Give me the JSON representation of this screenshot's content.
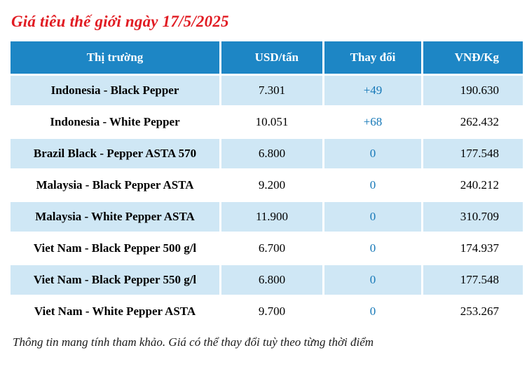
{
  "title": "Giá tiêu thế giới ngày 17/5/2025",
  "disclaimer": "Thông tin mang tính tham khảo. Giá có thể thay đổi tuỳ theo từng thời điểm",
  "colors": {
    "header_bg": "#1d86c5",
    "row_alt_bg": "#cfe7f5",
    "change_text": "#1779b8",
    "title_text": "#e11b22"
  },
  "chart_data": {
    "type": "table",
    "title": "Giá tiêu thế giới ngày 17/5/2025",
    "columns": [
      "Thị trường",
      "USD/tấn",
      "Thay đổi",
      "VNĐ/Kg"
    ],
    "rows": [
      {
        "market": "Indonesia - Black Pepper",
        "usd": "7.301",
        "change": "+49",
        "vnd": "190.630"
      },
      {
        "market": "Indonesia - White Pepper",
        "usd": "10.051",
        "change": "+68",
        "vnd": "262.432"
      },
      {
        "market": "Brazil Black - Pepper ASTA 570",
        "usd": "6.800",
        "change": "0",
        "vnd": "177.548"
      },
      {
        "market": "Malaysia - Black Pepper ASTA",
        "usd": "9.200",
        "change": "0",
        "vnd": "240.212"
      },
      {
        "market": "Malaysia - White Pepper ASTA",
        "usd": "11.900",
        "change": "0",
        "vnd": "310.709"
      },
      {
        "market": "Viet Nam - Black Pepper 500 g/l",
        "usd": "6.700",
        "change": "0",
        "vnd": "174.937"
      },
      {
        "market": "Viet Nam - Black Pepper 550 g/l",
        "usd": "6.800",
        "change": "0",
        "vnd": "177.548"
      },
      {
        "market": "Viet Nam - White Pepper ASTA",
        "usd": "9.700",
        "change": "0",
        "vnd": "253.267"
      }
    ]
  }
}
